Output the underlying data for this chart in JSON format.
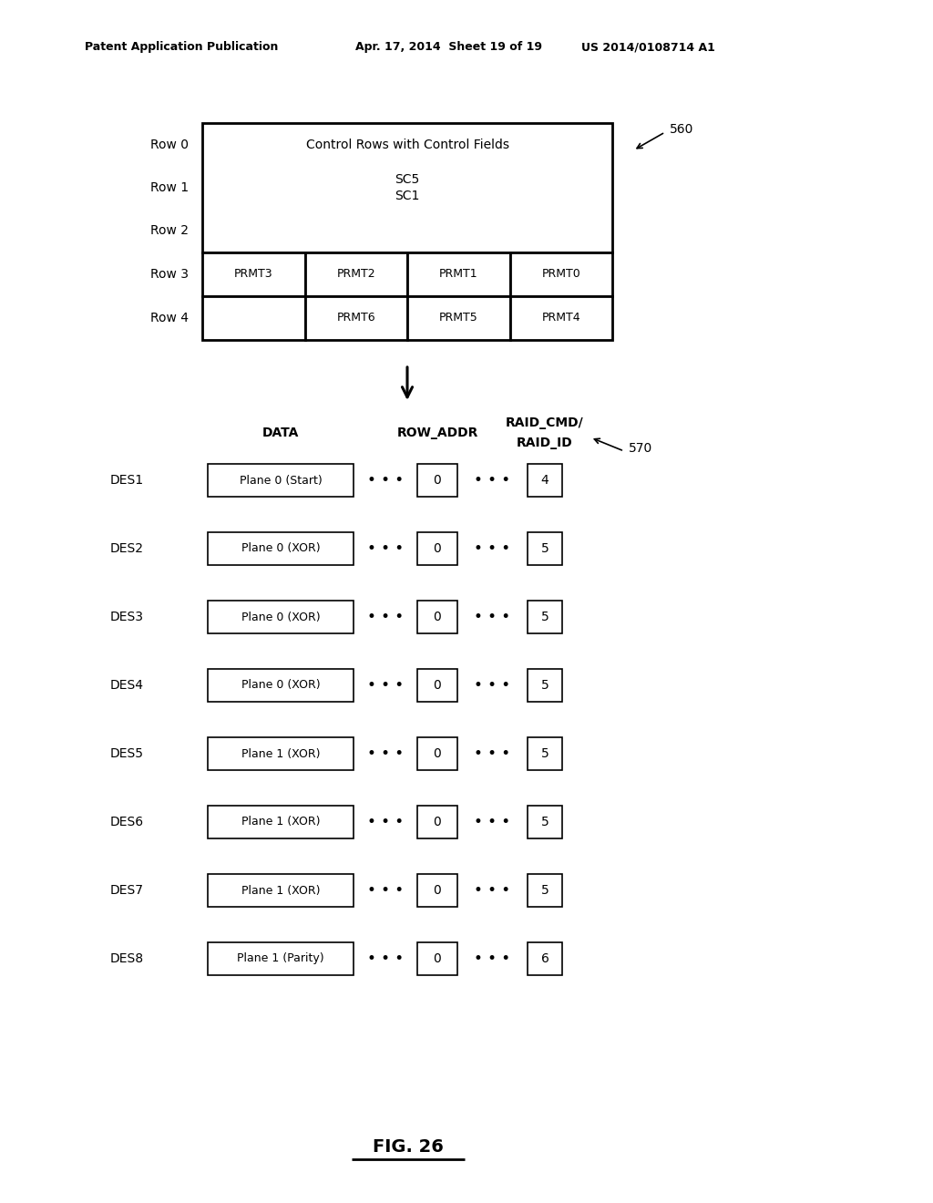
{
  "header_left": "Patent Application Publication",
  "header_mid": "Apr. 17, 2014  Sheet 19 of 19",
  "header_right": "US 2014/0108714 A1",
  "fig_label": "FIG. 26",
  "ref_560": "560",
  "ref_570": "570",
  "top_table": {
    "row_labels": [
      "Row 0",
      "Row 1",
      "Row 2",
      "Row 3",
      "Row 4"
    ],
    "merged_text_top": "Control Rows with Control Fields",
    "merged_text_mid1": "SC5",
    "merged_text_mid2": "SC1",
    "row3_cells": [
      "PRMT3",
      "PRMT2",
      "PRMT1",
      "PRMT0"
    ],
    "row4_cells": [
      "",
      "PRMT6",
      "PRMT5",
      "PRMT4"
    ]
  },
  "bottom_col_header1": "DATA",
  "bottom_col_header2": "ROW_ADDR",
  "bottom_col_header3a": "RAID_CMD/",
  "bottom_col_header3b": "RAID_ID",
  "des_rows": [
    {
      "label": "DES1",
      "data": "Plane 0 (Start)",
      "addr": "0",
      "raid": "4"
    },
    {
      "label": "DES2",
      "data": "Plane 0 (XOR)",
      "addr": "0",
      "raid": "5"
    },
    {
      "label": "DES3",
      "data": "Plane 0 (XOR)",
      "addr": "0",
      "raid": "5"
    },
    {
      "label": "DES4",
      "data": "Plane 0 (XOR)",
      "addr": "0",
      "raid": "5"
    },
    {
      "label": "DES5",
      "data": "Plane 1 (XOR)",
      "addr": "0",
      "raid": "5"
    },
    {
      "label": "DES6",
      "data": "Plane 1 (XOR)",
      "addr": "0",
      "raid": "5"
    },
    {
      "label": "DES7",
      "data": "Plane 1 (XOR)",
      "addr": "0",
      "raid": "5"
    },
    {
      "label": "DES8",
      "data": "Plane 1 (Parity)",
      "addr": "0",
      "raid": "6"
    }
  ],
  "bg_color": "#ffffff",
  "lw_thick": 2.0,
  "lw_thin": 1.2,
  "fs_header": 9,
  "fs_main": 10,
  "fs_small": 9,
  "fs_dots": 12
}
